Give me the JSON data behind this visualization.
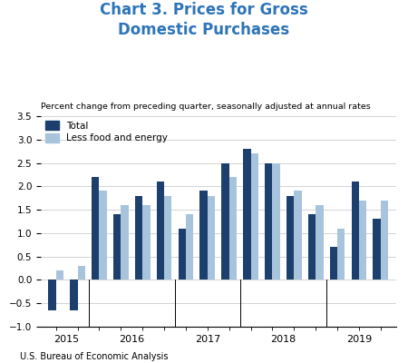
{
  "title_line1": "Chart 3. Prices for Gross",
  "title_line2": "Domestic Purchases",
  "subtitle": "Percent change from preceding quarter, seasonally adjusted at annual rates",
  "source": "U.S. Bureau of Economic Analysis",
  "total_color": "#1c3f6e",
  "less_color": "#a8c4dc",
  "title_color": "#2e74b8",
  "ylim": [
    -1.0,
    3.5
  ],
  "yticks": [
    -1.0,
    -0.5,
    0.0,
    0.5,
    1.0,
    1.5,
    2.0,
    2.5,
    3.0,
    3.5
  ],
  "ytick_labels": [
    "-1.0",
    "-0.5",
    "0.0",
    "0.5",
    "1.0",
    "1.5",
    "2.0",
    "2.5",
    "3.0",
    "3.5"
  ],
  "year_labels": [
    "2015",
    "2016",
    "2017",
    "2018",
    "2019"
  ],
  "total": [
    -0.65,
    -0.65,
    2.2,
    1.4,
    1.8,
    2.1,
    1.1,
    1.9,
    2.5,
    2.8,
    2.5,
    1.8,
    1.4,
    0.7,
    2.1,
    1.3
  ],
  "less": [
    0.2,
    0.3,
    1.9,
    1.6,
    1.6,
    1.8,
    1.4,
    1.8,
    2.2,
    2.7,
    2.5,
    1.9,
    1.6,
    1.1,
    1.7,
    1.7
  ],
  "n_bars_per_year": [
    2,
    4,
    3,
    4,
    3
  ],
  "bar_width": 0.35
}
